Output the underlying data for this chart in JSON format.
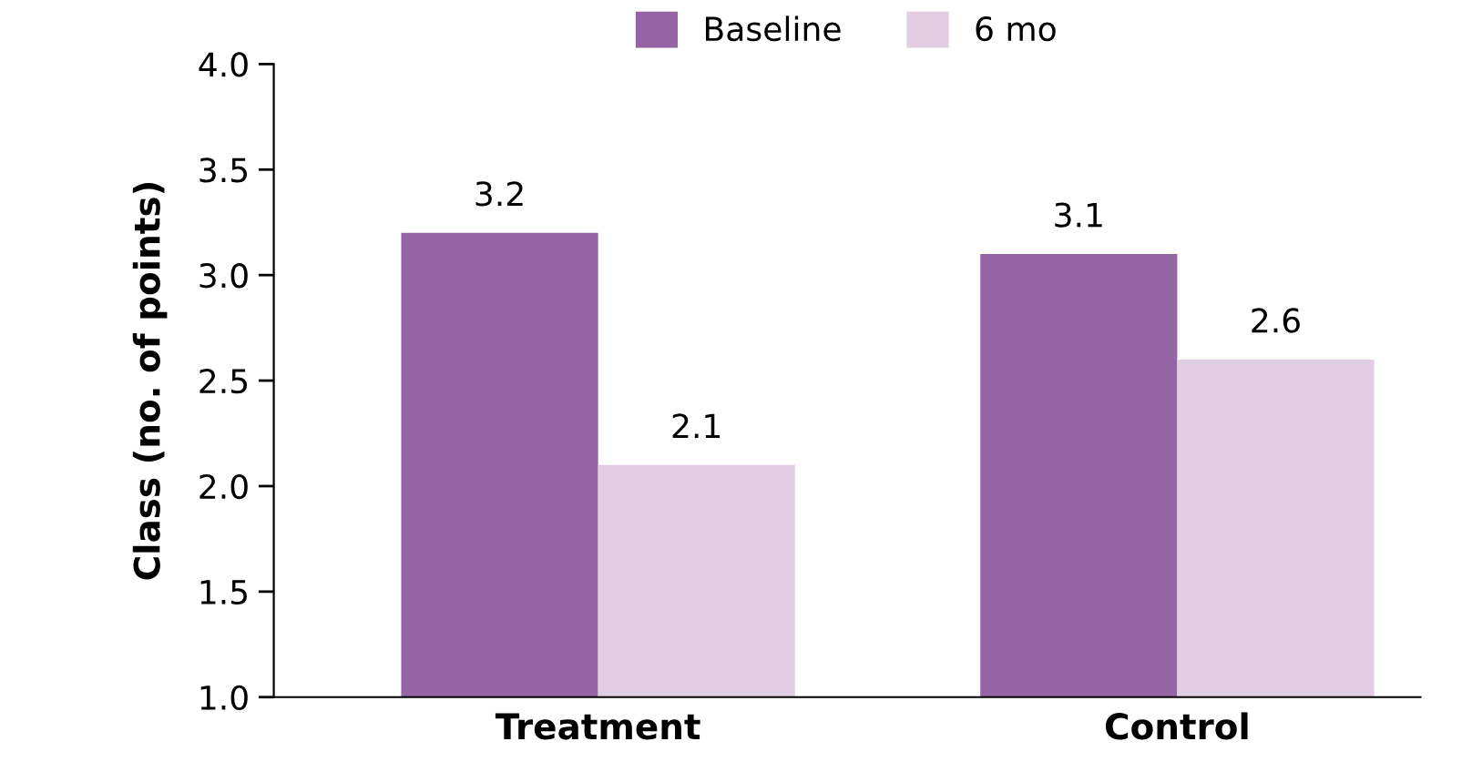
{
  "chart_data": {
    "type": "bar",
    "ylabel": "Class (no. of points)",
    "categories": [
      "Treatment",
      "Control"
    ],
    "series": [
      {
        "name": "Baseline",
        "color": "#9464a4",
        "values": [
          3.2,
          3.1
        ]
      },
      {
        "name": "6 mo",
        "color": "#e2cce2",
        "values": [
          2.1,
          2.6
        ]
      }
    ],
    "ylim": [
      1.0,
      4.0
    ],
    "yticks": [
      {
        "value": 1,
        "label": "1.0"
      },
      {
        "value": 1.5,
        "label": "1.5"
      },
      {
        "value": 2,
        "label": "2.0"
      },
      {
        "value": 2.5,
        "label": "2.5"
      },
      {
        "value": 3,
        "label": "3.0"
      },
      {
        "value": 3.5,
        "label": "3.5"
      },
      {
        "value": 4,
        "label": "4.0"
      }
    ],
    "data_labels": true,
    "legend": "top",
    "grid": false
  }
}
